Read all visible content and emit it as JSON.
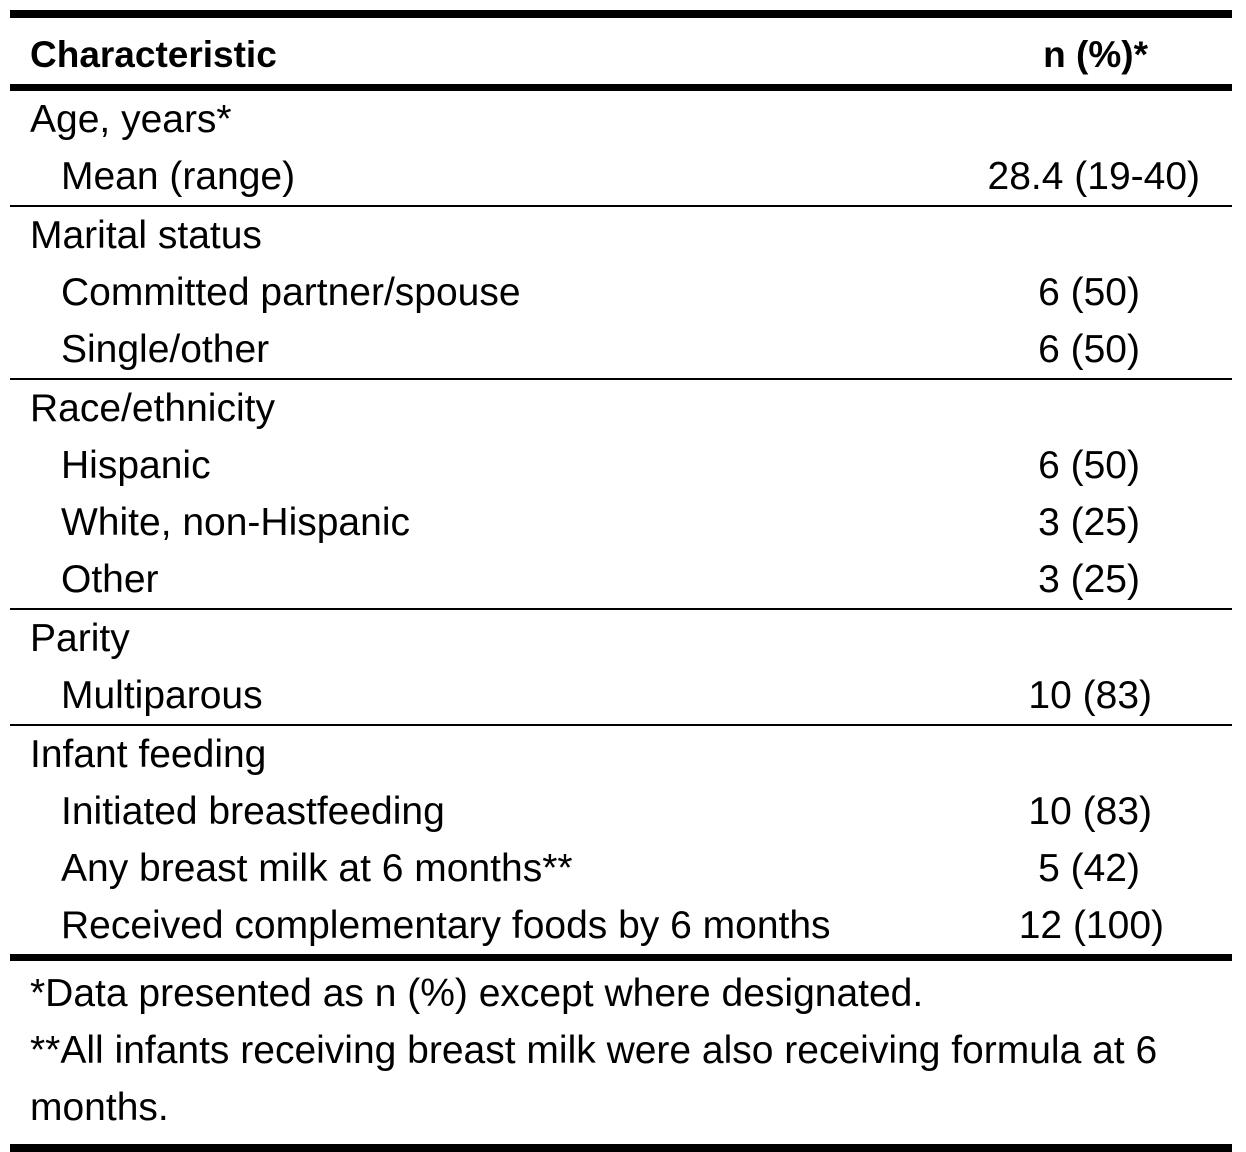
{
  "header": {
    "characteristic": "Characteristic",
    "n_pct": "n (%)*"
  },
  "sections": {
    "age": {
      "title": "Age, years*",
      "rows": [
        {
          "label": "Mean (range)",
          "value": "28.4 (19-40)"
        }
      ]
    },
    "marital": {
      "title": "Marital status",
      "rows": [
        {
          "label": "Committed partner/spouse",
          "value": "6 (50)"
        },
        {
          "label": "Single/other",
          "value": "6 (50)"
        }
      ]
    },
    "race": {
      "title": "Race/ethnicity",
      "rows": [
        {
          "label": "Hispanic",
          "value": "6 (50)"
        },
        {
          "label": "White, non-Hispanic",
          "value": "3 (25)"
        },
        {
          "label": "Other",
          "value": "3 (25)"
        }
      ]
    },
    "parity": {
      "title": "Parity",
      "rows": [
        {
          "label": "Multiparous",
          "value": "10 (83)"
        }
      ]
    },
    "feeding": {
      "title": "Infant feeding",
      "rows": [
        {
          "label": "Initiated breastfeeding",
          "value": "10 (83)"
        },
        {
          "label": "Any breast milk at 6 months**",
          "value": "5 (42)"
        },
        {
          "label": "Received complementary foods by 6 months",
          "value": "12 (100)"
        }
      ]
    }
  },
  "footnotes": {
    "note1": "*Data presented as n (%) except where designated.",
    "note2": "**All infants receiving breast milk were also receiving formula at 6 months."
  }
}
